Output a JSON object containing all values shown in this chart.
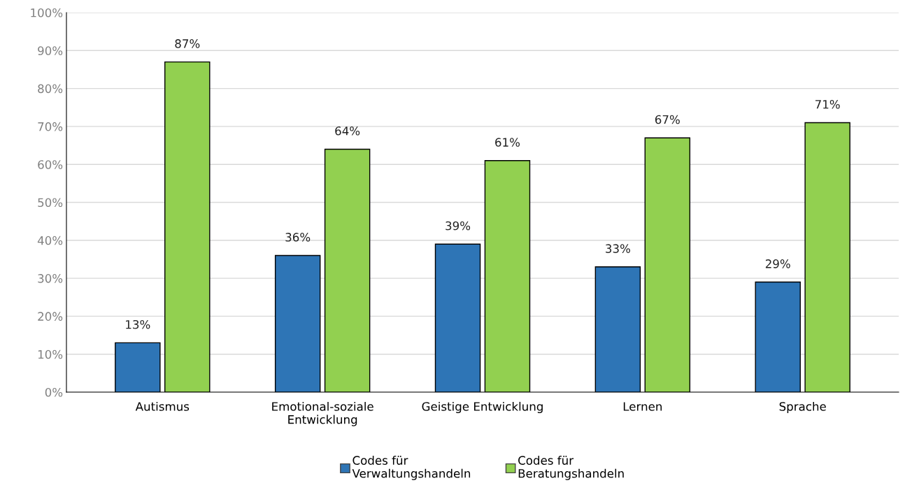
{
  "chart_data": {
    "type": "bar",
    "categories": [
      "Autismus",
      "Emotional-soziale\nEntwicklung",
      "Geistige Entwicklung",
      "Lernen",
      "Sprache"
    ],
    "series": [
      {
        "name": "Codes für\nVerwaltungshandeln",
        "color": "#2e75b6",
        "values": [
          13,
          36,
          39,
          33,
          29
        ],
        "value_labels": [
          "13%",
          "36%",
          "39%",
          "33%",
          "29%"
        ]
      },
      {
        "name": "Codes für\nBeratungshandeln",
        "color": "#92d050",
        "values": [
          87,
          64,
          61,
          67,
          71
        ],
        "value_labels": [
          "87%",
          "64%",
          "61%",
          "67%",
          "71%"
        ]
      }
    ],
    "ylim": [
      0,
      100
    ],
    "yticks": [
      {
        "value": 0,
        "label": "0%"
      },
      {
        "value": 10,
        "label": "10%"
      },
      {
        "value": 20,
        "label": "20%"
      },
      {
        "value": 30,
        "label": "30%"
      },
      {
        "value": 40,
        "label": "40%"
      },
      {
        "value": 50,
        "label": "50%"
      },
      {
        "value": 60,
        "label": "60%"
      },
      {
        "value": 70,
        "label": "70%"
      },
      {
        "value": 80,
        "label": "80%"
      },
      {
        "value": 90,
        "label": "90%"
      },
      {
        "value": 100,
        "label": "100%"
      }
    ],
    "grid": "y",
    "legend": "bottom"
  }
}
